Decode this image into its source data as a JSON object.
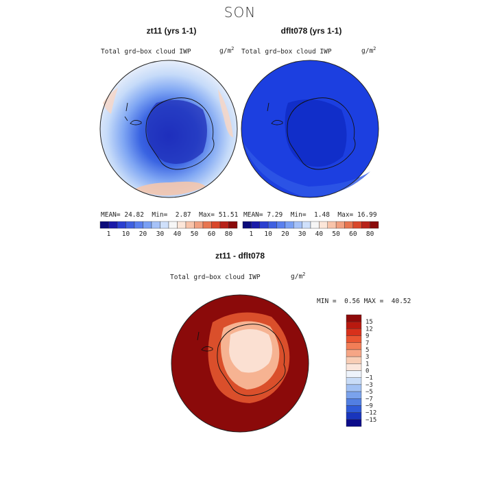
{
  "figure": {
    "season": "SON"
  },
  "panels": [
    {
      "title": "zt11 (yrs 1-1)",
      "variable": "Total grd−box cloud IWP",
      "units_base": "g/m",
      "units_exp": "2",
      "stats": {
        "mean_label": "MEAN=",
        "mean": "24.82",
        "min_label": "Min=",
        "min": "2.87",
        "max_label": "Max=",
        "max": "51.51"
      }
    },
    {
      "title": "dflt078 (yrs 1-1)",
      "variable": "Total grd−box cloud IWP",
      "units_base": "g/m",
      "units_exp": "2",
      "stats": {
        "mean_label": "MEAN=",
        "mean": "7.29",
        "min_label": "Min=",
        "min": "1.48",
        "max_label": "Max=",
        "max": "16.99"
      }
    }
  ],
  "abs_colorbar": {
    "colors": [
      "#0b0b7a",
      "#1a1aa8",
      "#2a3fd0",
      "#3f60e0",
      "#5a80ee",
      "#7aa0f4",
      "#a6c2f8",
      "#cfe0fb",
      "#f6f6f6",
      "#fce6d9",
      "#f8c4aa",
      "#f1a080",
      "#e77550",
      "#d9472a",
      "#b8231a",
      "#8a0a0a"
    ],
    "tick_labels": [
      "1",
      "10",
      "20",
      "30",
      "40",
      "50",
      "60",
      "80"
    ]
  },
  "difference": {
    "title": "zt11 - dflt078",
    "variable": "Total grd−box cloud IWP",
    "units_base": "g/m",
    "units_exp": "2",
    "min_label": "MIN =",
    "min": "0.56",
    "max_label": "MAX =",
    "max": "40.52",
    "colorbar": {
      "colors": [
        "#8e0a0a",
        "#b8190f",
        "#d8301b",
        "#ea5532",
        "#f27e57",
        "#f6a585",
        "#f8cdb5",
        "#fbe6dc",
        "#eef3fb",
        "#c9dcf7",
        "#a2c1f3",
        "#7aa2ec",
        "#527fe2",
        "#2f5bd8",
        "#1935bd",
        "#0b0b8a"
      ],
      "tick_labels": [
        "15",
        "12",
        "9",
        "7",
        "5",
        "3",
        "1",
        "0",
        "−1",
        "−3",
        "−5",
        "−7",
        "−9",
        "−12",
        "−15"
      ]
    }
  },
  "colors": {
    "deep_blue": "#1236d8",
    "dark_red": "#8b0a0a",
    "coastline": "#111111"
  }
}
